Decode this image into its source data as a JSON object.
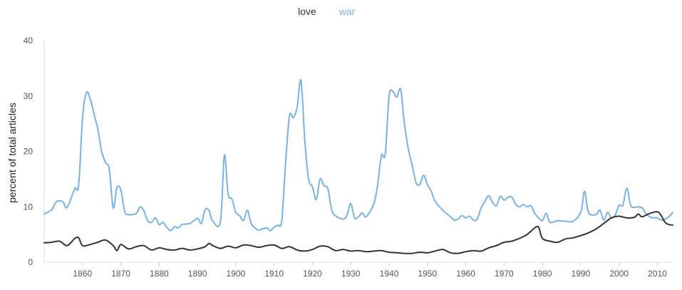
{
  "chart_data": {
    "type": "line",
    "title": "",
    "xlabel": "",
    "ylabel": "percent of total articles",
    "xlim": [
      1850,
      2014
    ],
    "ylim": [
      0,
      40
    ],
    "x_ticks": [
      1860,
      1870,
      1880,
      1890,
      1900,
      1910,
      1920,
      1930,
      1940,
      1950,
      1960,
      1970,
      1980,
      1990,
      2000,
      2010
    ],
    "y_ticks": [
      0,
      10,
      20,
      30,
      40
    ],
    "grid": false,
    "legend": "top-center",
    "series": [
      {
        "name": "love",
        "color": "#333333",
        "points": [
          [
            1850,
            3.5
          ],
          [
            1852,
            3.6
          ],
          [
            1854,
            3.8
          ],
          [
            1856,
            3.0
          ],
          [
            1858,
            4.3
          ],
          [
            1859,
            4.4
          ],
          [
            1860,
            3.0
          ],
          [
            1862,
            3.2
          ],
          [
            1864,
            3.6
          ],
          [
            1866,
            4.0
          ],
          [
            1868,
            3.0
          ],
          [
            1869,
            2.1
          ],
          [
            1870,
            3.2
          ],
          [
            1872,
            2.4
          ],
          [
            1874,
            2.8
          ],
          [
            1876,
            3.0
          ],
          [
            1878,
            2.2
          ],
          [
            1880,
            2.6
          ],
          [
            1882,
            2.3
          ],
          [
            1884,
            2.2
          ],
          [
            1886,
            2.5
          ],
          [
            1888,
            2.2
          ],
          [
            1890,
            2.4
          ],
          [
            1892,
            2.8
          ],
          [
            1893,
            3.4
          ],
          [
            1894,
            3.0
          ],
          [
            1896,
            2.5
          ],
          [
            1898,
            2.9
          ],
          [
            1900,
            2.6
          ],
          [
            1902,
            3.1
          ],
          [
            1904,
            3.0
          ],
          [
            1906,
            2.7
          ],
          [
            1908,
            3.0
          ],
          [
            1910,
            3.1
          ],
          [
            1912,
            2.5
          ],
          [
            1914,
            2.8
          ],
          [
            1916,
            2.2
          ],
          [
            1918,
            2.0
          ],
          [
            1920,
            2.3
          ],
          [
            1922,
            2.9
          ],
          [
            1924,
            2.8
          ],
          [
            1926,
            2.1
          ],
          [
            1928,
            2.3
          ],
          [
            1930,
            2.0
          ],
          [
            1932,
            2.1
          ],
          [
            1934,
            1.9
          ],
          [
            1936,
            2.0
          ],
          [
            1938,
            2.1
          ],
          [
            1940,
            1.8
          ],
          [
            1942,
            1.7
          ],
          [
            1944,
            1.6
          ],
          [
            1946,
            1.6
          ],
          [
            1948,
            1.8
          ],
          [
            1950,
            1.7
          ],
          [
            1952,
            2.0
          ],
          [
            1954,
            2.3
          ],
          [
            1956,
            1.7
          ],
          [
            1958,
            1.6
          ],
          [
            1960,
            1.9
          ],
          [
            1962,
            2.1
          ],
          [
            1964,
            2.0
          ],
          [
            1966,
            2.6
          ],
          [
            1968,
            3.0
          ],
          [
            1970,
            3.6
          ],
          [
            1972,
            3.8
          ],
          [
            1974,
            4.3
          ],
          [
            1976,
            5.0
          ],
          [
            1978,
            6.2
          ],
          [
            1979,
            6.3
          ],
          [
            1980,
            4.3
          ],
          [
            1982,
            3.8
          ],
          [
            1984,
            3.6
          ],
          [
            1986,
            4.2
          ],
          [
            1988,
            4.4
          ],
          [
            1990,
            4.8
          ],
          [
            1992,
            5.3
          ],
          [
            1994,
            6.0
          ],
          [
            1996,
            7.0
          ],
          [
            1998,
            8.0
          ],
          [
            2000,
            8.3
          ],
          [
            2002,
            8.0
          ],
          [
            2004,
            8.1
          ],
          [
            2005,
            8.7
          ],
          [
            2006,
            8.2
          ],
          [
            2008,
            8.8
          ],
          [
            2010,
            9.1
          ],
          [
            2011,
            8.4
          ],
          [
            2012,
            7.2
          ],
          [
            2013,
            6.8
          ],
          [
            2014,
            6.7
          ]
        ]
      },
      {
        "name": "war",
        "color": "#79b2e0",
        "points": [
          [
            1850,
            8.7
          ],
          [
            1852,
            9.5
          ],
          [
            1853,
            10.8
          ],
          [
            1854,
            11.1
          ],
          [
            1855,
            10.8
          ],
          [
            1856,
            9.9
          ],
          [
            1858,
            13.3
          ],
          [
            1859,
            13.9
          ],
          [
            1860,
            26.0
          ],
          [
            1861,
            30.6
          ],
          [
            1862,
            29.5
          ],
          [
            1863,
            26.8
          ],
          [
            1864,
            24.0
          ],
          [
            1865,
            20.0
          ],
          [
            1866,
            18.0
          ],
          [
            1867,
            16.8
          ],
          [
            1868,
            9.8
          ],
          [
            1869,
            13.5
          ],
          [
            1870,
            13.0
          ],
          [
            1871,
            9.2
          ],
          [
            1872,
            8.6
          ],
          [
            1874,
            8.8
          ],
          [
            1875,
            10.0
          ],
          [
            1876,
            9.3
          ],
          [
            1877,
            7.5
          ],
          [
            1878,
            7.2
          ],
          [
            1879,
            8.0
          ],
          [
            1880,
            6.8
          ],
          [
            1881,
            7.2
          ],
          [
            1882,
            6.3
          ],
          [
            1883,
            5.7
          ],
          [
            1884,
            6.4
          ],
          [
            1885,
            6.2
          ],
          [
            1886,
            6.8
          ],
          [
            1888,
            7.0
          ],
          [
            1890,
            7.9
          ],
          [
            1891,
            7.0
          ],
          [
            1892,
            9.5
          ],
          [
            1893,
            9.3
          ],
          [
            1894,
            7.4
          ],
          [
            1896,
            7.4
          ],
          [
            1897,
            19.3
          ],
          [
            1898,
            12.3
          ],
          [
            1899,
            11.4
          ],
          [
            1900,
            9.0
          ],
          [
            1901,
            8.4
          ],
          [
            1902,
            7.5
          ],
          [
            1903,
            9.4
          ],
          [
            1904,
            7.0
          ],
          [
            1905,
            6.2
          ],
          [
            1906,
            5.8
          ],
          [
            1908,
            6.2
          ],
          [
            1909,
            5.7
          ],
          [
            1910,
            6.3
          ],
          [
            1911,
            6.7
          ],
          [
            1912,
            7.5
          ],
          [
            1913,
            18.0
          ],
          [
            1914,
            26.4
          ],
          [
            1915,
            26.1
          ],
          [
            1916,
            28.0
          ],
          [
            1917,
            32.8
          ],
          [
            1918,
            22.0
          ],
          [
            1919,
            15.0
          ],
          [
            1920,
            13.6
          ],
          [
            1921,
            11.3
          ],
          [
            1922,
            15.0
          ],
          [
            1923,
            13.8
          ],
          [
            1924,
            13.3
          ],
          [
            1925,
            9.5
          ],
          [
            1926,
            8.4
          ],
          [
            1928,
            7.8
          ],
          [
            1929,
            8.5
          ],
          [
            1930,
            10.6
          ],
          [
            1931,
            8.0
          ],
          [
            1932,
            8.2
          ],
          [
            1933,
            8.9
          ],
          [
            1934,
            8.2
          ],
          [
            1936,
            10.5
          ],
          [
            1937,
            14.0
          ],
          [
            1938,
            19.3
          ],
          [
            1939,
            19.5
          ],
          [
            1940,
            30.0
          ],
          [
            1941,
            30.8
          ],
          [
            1942,
            29.8
          ],
          [
            1943,
            31.2
          ],
          [
            1944,
            25.0
          ],
          [
            1945,
            20.5
          ],
          [
            1946,
            17.5
          ],
          [
            1947,
            14.4
          ],
          [
            1948,
            14.0
          ],
          [
            1949,
            15.7
          ],
          [
            1950,
            14.0
          ],
          [
            1951,
            12.8
          ],
          [
            1952,
            11.0
          ],
          [
            1954,
            9.4
          ],
          [
            1956,
            8.2
          ],
          [
            1957,
            7.6
          ],
          [
            1958,
            7.8
          ],
          [
            1959,
            8.4
          ],
          [
            1960,
            8.0
          ],
          [
            1961,
            8.3
          ],
          [
            1962,
            7.6
          ],
          [
            1963,
            7.8
          ],
          [
            1964,
            9.8
          ],
          [
            1965,
            11.0
          ],
          [
            1966,
            12.0
          ],
          [
            1967,
            10.8
          ],
          [
            1968,
            10.2
          ],
          [
            1969,
            11.9
          ],
          [
            1970,
            11.2
          ],
          [
            1971,
            11.7
          ],
          [
            1972,
            11.8
          ],
          [
            1973,
            10.5
          ],
          [
            1974,
            10.0
          ],
          [
            1975,
            10.4
          ],
          [
            1976,
            10.0
          ],
          [
            1977,
            10.2
          ],
          [
            1978,
            8.8
          ],
          [
            1979,
            8.0
          ],
          [
            1980,
            7.5
          ],
          [
            1981,
            8.8
          ],
          [
            1982,
            7.2
          ],
          [
            1984,
            7.5
          ],
          [
            1986,
            7.4
          ],
          [
            1988,
            7.4
          ],
          [
            1990,
            9.0
          ],
          [
            1991,
            12.8
          ],
          [
            1992,
            9.0
          ],
          [
            1994,
            8.6
          ],
          [
            1995,
            9.4
          ],
          [
            1996,
            7.6
          ],
          [
            1997,
            9.0
          ],
          [
            1998,
            8.0
          ],
          [
            1999,
            8.5
          ],
          [
            2000,
            10.3
          ],
          [
            2001,
            10.3
          ],
          [
            2002,
            13.4
          ],
          [
            2003,
            10.3
          ],
          [
            2004,
            9.9
          ],
          [
            2005,
            10.0
          ],
          [
            2006,
            9.8
          ],
          [
            2007,
            8.8
          ],
          [
            2008,
            8.2
          ],
          [
            2009,
            8.0
          ],
          [
            2010,
            8.0
          ],
          [
            2011,
            7.6
          ],
          [
            2012,
            7.8
          ],
          [
            2013,
            8.2
          ],
          [
            2014,
            9.0
          ]
        ]
      }
    ]
  }
}
